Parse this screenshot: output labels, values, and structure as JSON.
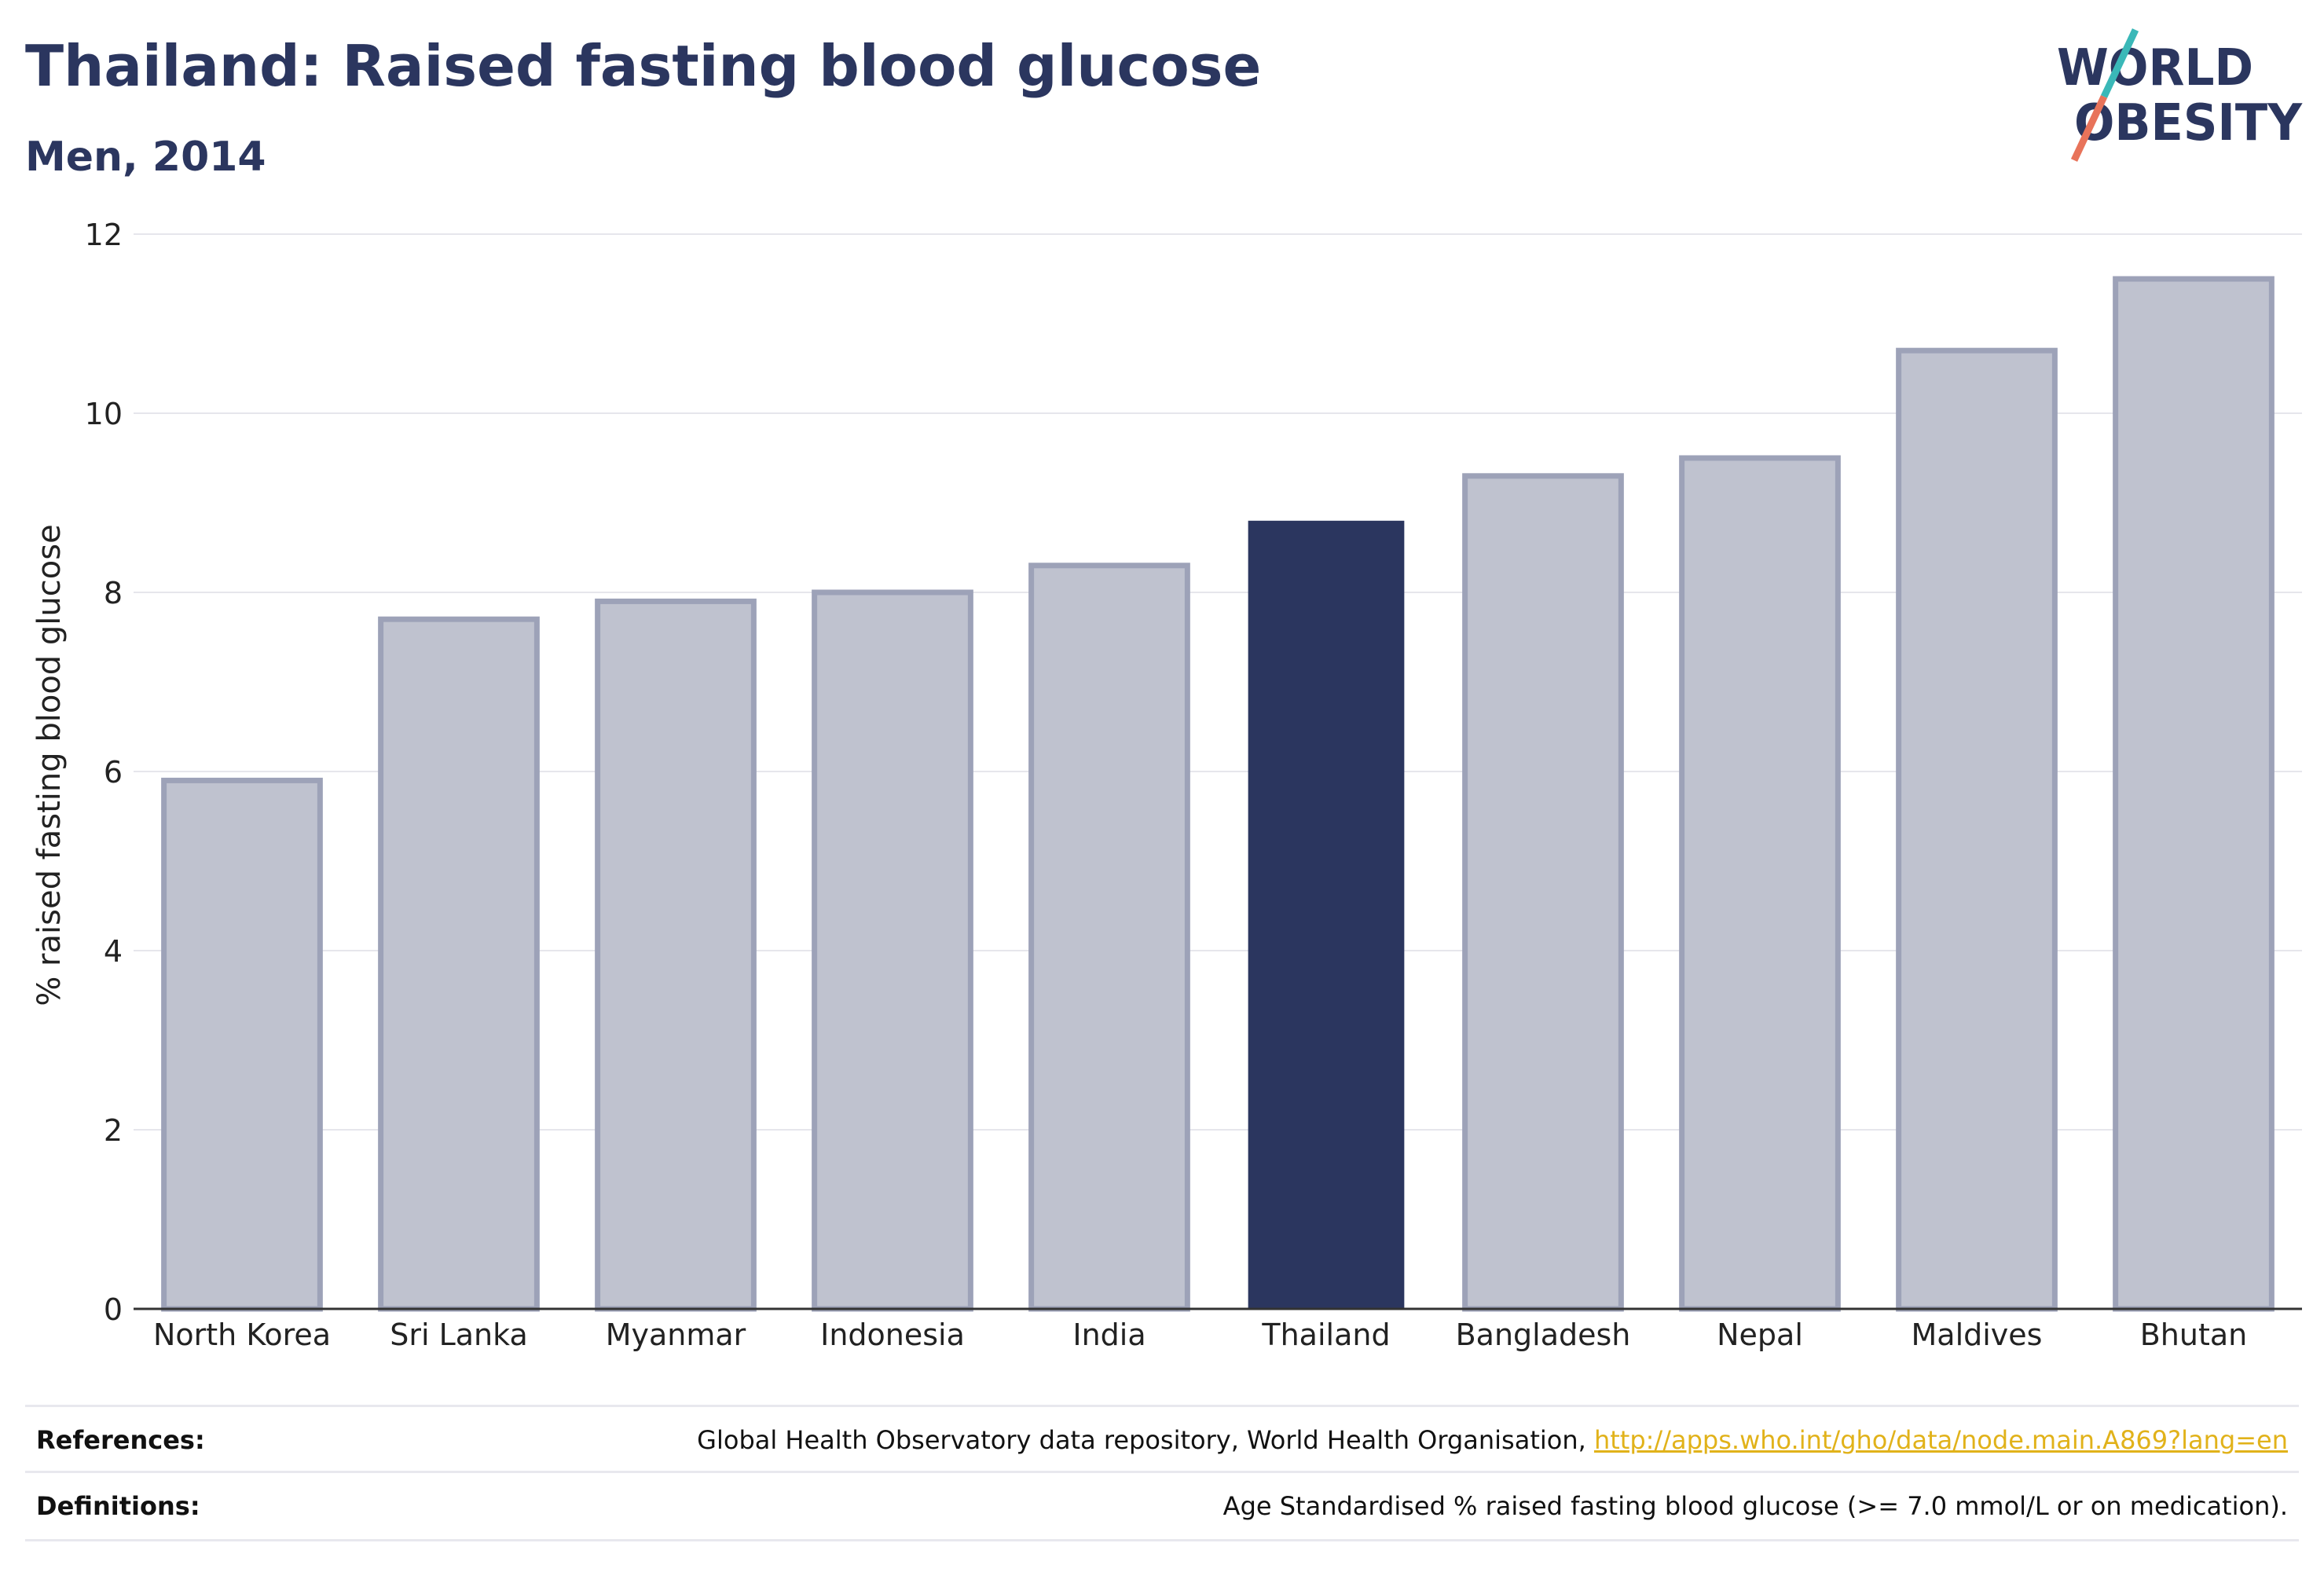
{
  "header": {
    "title": "Thailand: Raised fasting blood glucose",
    "subtitle": "Men, 2014"
  },
  "logo": {
    "line1": "WORLD",
    "line2": "OBESITY",
    "text_color": "#2b365f",
    "slash_color_top": "#3ab8b8",
    "slash_color_bottom": "#e8735a"
  },
  "chart_data": {
    "type": "bar",
    "categories": [
      "North Korea",
      "Sri Lanka",
      "Myanmar",
      "Indonesia",
      "India",
      "Thailand",
      "Bangladesh",
      "Nepal",
      "Maldives",
      "Bhutan"
    ],
    "values": [
      5.9,
      7.7,
      7.9,
      8.0,
      8.3,
      8.8,
      9.3,
      9.5,
      10.7,
      11.5
    ],
    "highlight": "Thailand",
    "ylabel": "% raised fasting blood glucose",
    "xlabel": "",
    "ylim": [
      0,
      12
    ],
    "yticks": [
      0,
      2,
      4,
      6,
      8,
      10,
      12
    ],
    "grid": true,
    "colors": {
      "bar": "#bfc2cf",
      "bar_border": "#9da2b8",
      "highlight": "#2b365f"
    }
  },
  "footer": {
    "references_label": "References:",
    "references_text": "Global Health Observatory data repository, World Health Organisation,",
    "references_link": "http://apps.who.int/gho/data/node.main.A869?lang=en",
    "definitions_label": "Definitions:",
    "definitions_text": "Age Standardised % raised fasting blood glucose (>= 7.0 mmol/L or on medication)."
  }
}
